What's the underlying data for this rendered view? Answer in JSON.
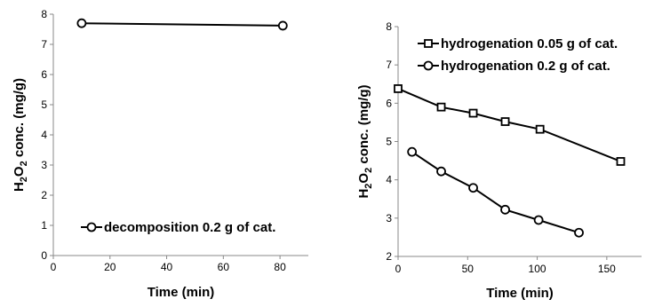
{
  "chart_data": [
    {
      "type": "line",
      "title": "",
      "xlabel": "Time (min)",
      "ylabel": "H2O2 conc. (mg/g)",
      "ylabel_parts": [
        "H",
        "2",
        "O",
        "2",
        " conc. (mg/g)"
      ],
      "xlim": [
        0,
        90
      ],
      "ylim": [
        0,
        8
      ],
      "x_ticks": [
        "0",
        "20",
        "40",
        "60",
        "80"
      ],
      "y_ticks": [
        "0",
        "1",
        "2",
        "3",
        "4",
        "5",
        "6",
        "7",
        "8"
      ],
      "grid": false,
      "legend": "bottom-right",
      "series": [
        {
          "name": "decomposition 0.2 g of cat.",
          "marker": "circle",
          "x": [
            10,
            81
          ],
          "y": [
            7.7,
            7.62
          ]
        }
      ]
    },
    {
      "type": "line",
      "title": "",
      "xlabel": "Time (min)",
      "ylabel": "H2O2 conc. (mg/g)",
      "ylabel_parts": [
        "H",
        "2",
        "O",
        "2",
        " conc. (mg/g)"
      ],
      "xlim": [
        0,
        175
      ],
      "ylim": [
        2,
        8
      ],
      "x_ticks": [
        "0",
        "50",
        "100",
        "150"
      ],
      "y_ticks": [
        "2",
        "3",
        "4",
        "5",
        "6",
        "7",
        "8"
      ],
      "grid": false,
      "legend": "top-left",
      "series": [
        {
          "name": "hydrogenation 0.05 g of cat.",
          "marker": "square",
          "x": [
            0,
            31,
            54,
            77,
            102,
            160
          ],
          "y": [
            6.38,
            5.9,
            5.74,
            5.52,
            5.32,
            4.48
          ]
        },
        {
          "name": "hydrogenation 0.2 g of cat.",
          "marker": "circle",
          "x": [
            10,
            31,
            54,
            77,
            101,
            130
          ],
          "y": [
            4.73,
            4.22,
            3.79,
            3.22,
            2.95,
            2.62
          ]
        }
      ]
    }
  ]
}
